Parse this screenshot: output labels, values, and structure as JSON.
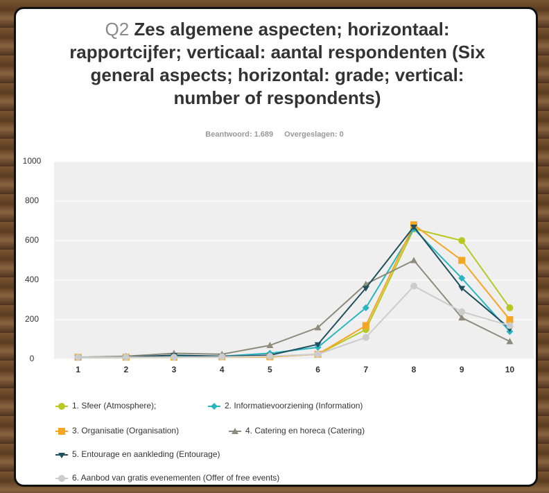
{
  "chart_data": {
    "type": "line",
    "question_number": "Q2",
    "title": "Zes algemene aspecten; horizontaal: rapportcijfer; verticaal: aantal respondenten (Six general aspects; horizontal: grade; vertical: number of respondents)",
    "answered": "Beantwoord: 1.689",
    "skipped": "Overgeslagen: 0",
    "categories": [
      "1",
      "2",
      "3",
      "4",
      "5",
      "6",
      "7",
      "8",
      "9",
      "10"
    ],
    "ylim": [
      0,
      1000
    ],
    "yticks": [
      0,
      200,
      400,
      600,
      800,
      1000
    ],
    "grid": true,
    "series": [
      {
        "name": "1. Sfeer (Atmosphere);",
        "color": "#b8c820",
        "marker": "circle",
        "values": [
          10,
          10,
          10,
          12,
          12,
          25,
          150,
          660,
          600,
          260
        ]
      },
      {
        "name": "2. Informatievoorziening (Information)",
        "color": "#2ab5c0",
        "marker": "diamond",
        "values": [
          10,
          10,
          15,
          15,
          30,
          60,
          260,
          660,
          410,
          140
        ]
      },
      {
        "name": "3. Organisatie (Organisation)",
        "color": "#f5a623",
        "marker": "square",
        "values": [
          10,
          10,
          10,
          12,
          12,
          25,
          170,
          680,
          500,
          200
        ]
      },
      {
        "name": "4. Catering en horeca (Catering)",
        "color": "#8c8c7c",
        "marker": "triangle",
        "values": [
          10,
          15,
          30,
          25,
          70,
          160,
          380,
          500,
          210,
          90
        ]
      },
      {
        "name": "5. Entourage en aankleding (Entourage)",
        "color": "#1f4f5f",
        "marker": "pin",
        "values": [
          10,
          10,
          20,
          15,
          20,
          75,
          360,
          670,
          360,
          155
        ]
      },
      {
        "name": "6. Aanbod van gratis evenementen (Offer of free events)",
        "color": "#cccccc",
        "marker": "circle",
        "values": [
          10,
          10,
          10,
          12,
          15,
          25,
          110,
          370,
          240,
          170
        ]
      }
    ]
  }
}
